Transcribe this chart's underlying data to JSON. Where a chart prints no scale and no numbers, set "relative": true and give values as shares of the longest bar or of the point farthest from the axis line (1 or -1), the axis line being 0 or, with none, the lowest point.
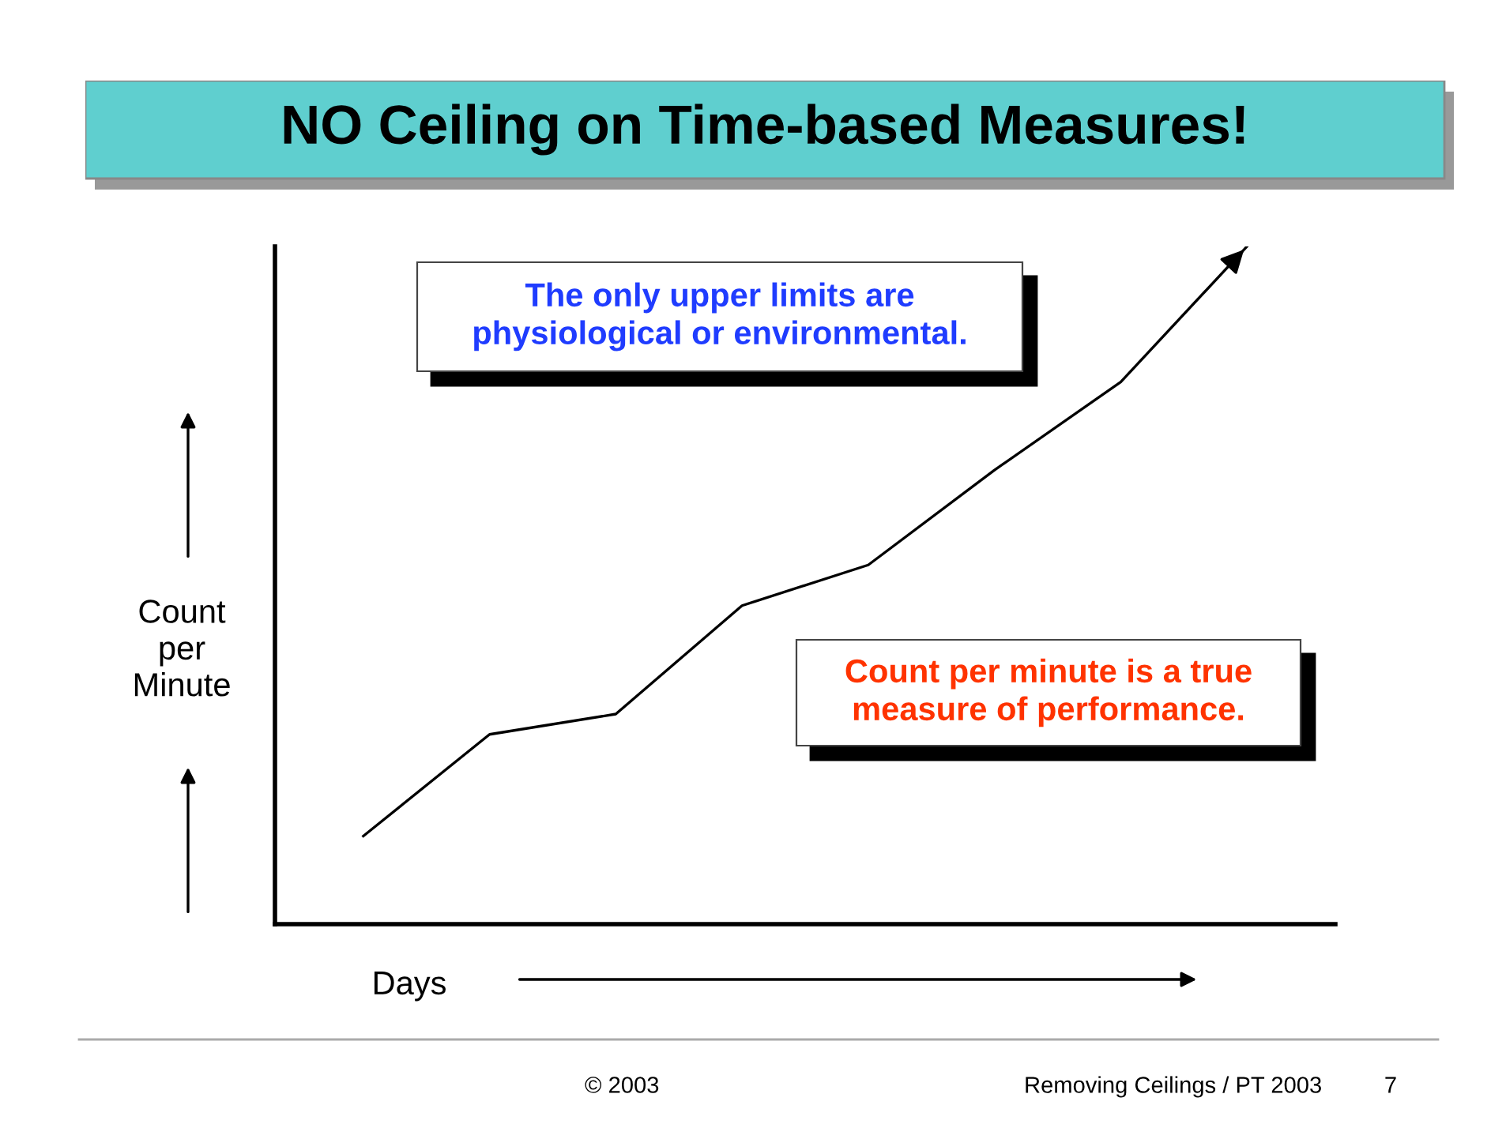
{
  "chart_data": {
    "type": "line",
    "title": "NO Ceiling on Time-based Measures!",
    "xlabel": "Days",
    "ylabel": "Count\nper\nMinute",
    "relative": true,
    "categories": [
      null,
      null,
      null,
      null,
      null,
      null,
      null,
      null
    ],
    "series": [
      {
        "color": "#000000",
        "values": [
          0.13,
          0.28,
          0.31,
          0.47,
          0.53,
          0.67,
          0.8,
          1.0
        ]
      }
    ],
    "annotations": [
      "The only upper limits are\nphysiological or environmental.",
      "Count per minute is a true\nmeasure of performance.",
      "© 2003",
      "Removing Ceilings / PT 2003",
      "7"
    ],
    "grid": false,
    "legend": false,
    "marker": "none",
    "line_style": "solid"
  }
}
